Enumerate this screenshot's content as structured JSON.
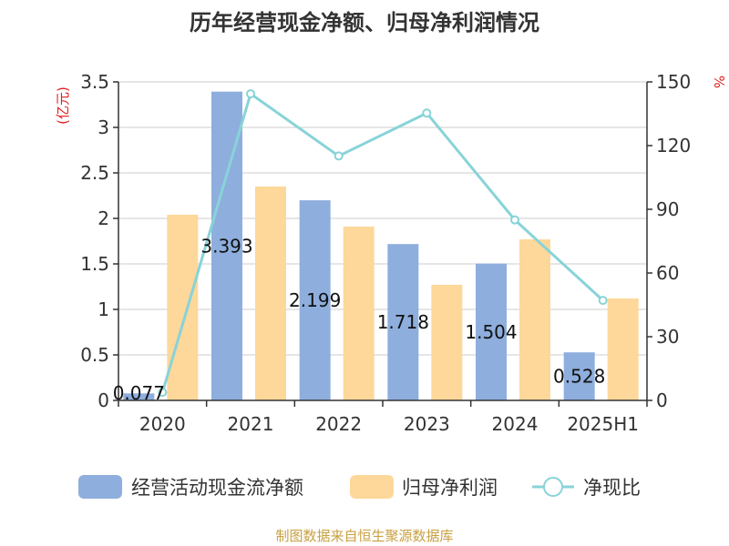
{
  "chart_data": {
    "type": "bar",
    "title": "历年经营现金净额、归母净利润情况",
    "categories": [
      "2020",
      "2021",
      "2022",
      "2023",
      "2024",
      "2025H1"
    ],
    "series": [
      {
        "name": "经营活动现金流净额",
        "kind": "bar",
        "axis": "left",
        "color": "#8eaedd",
        "values": [
          0.077,
          3.393,
          2.199,
          1.718,
          1.504,
          0.528
        ],
        "labels": [
          "0.077",
          "3.393",
          "2.199",
          "1.718",
          "1.504",
          "0.528"
        ]
      },
      {
        "name": "归母净利润",
        "kind": "bar",
        "axis": "left",
        "color": "#fdd89a",
        "values": [
          2.04,
          2.35,
          1.91,
          1.27,
          1.77,
          1.12
        ]
      },
      {
        "name": "净现比",
        "kind": "line",
        "axis": "right",
        "color": "#88d3d8",
        "values": [
          3.8,
          144.4,
          115.1,
          135.3,
          85.0,
          47.1
        ]
      }
    ],
    "y_left": {
      "label": "(亿元)",
      "min": 0,
      "max": 3.5,
      "ticks": [
        "0",
        "0.5",
        "1",
        "1.5",
        "2",
        "2.5",
        "3",
        "3.5"
      ]
    },
    "y_right": {
      "label": "%",
      "min": 0,
      "max": 150,
      "ticks": [
        "0",
        "30",
        "60",
        "90",
        "120",
        "150"
      ]
    },
    "grid": true,
    "legend_position": "bottom",
    "source": "制图数据来自恒生聚源数据库"
  }
}
